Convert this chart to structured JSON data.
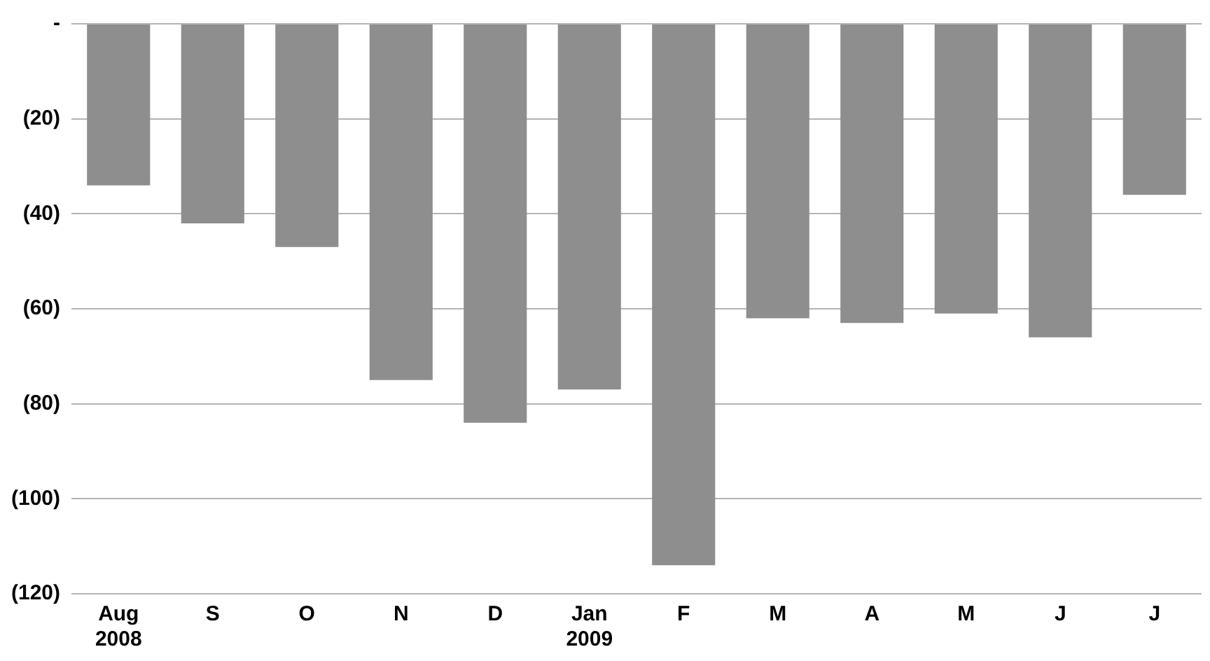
{
  "chart_data": {
    "type": "bar",
    "categories": [
      "Aug\n2008",
      "S",
      "O",
      "N",
      "D",
      "Jan\n2009",
      "F",
      "M",
      "A",
      "M",
      "J",
      "J"
    ],
    "values": [
      -34,
      -42,
      -47,
      -75,
      -84,
      -77,
      -114,
      -62,
      -63,
      -61,
      -66,
      -36
    ],
    "color": "#8e8e8e",
    "ylim": [
      -120,
      0
    ],
    "yticks": [
      {
        "value": 0,
        "label": "-"
      },
      {
        "value": -20,
        "label": "(20)"
      },
      {
        "value": -40,
        "label": "(40)"
      },
      {
        "value": -60,
        "label": "(60)"
      },
      {
        "value": -80,
        "label": "(80)"
      },
      {
        "value": -100,
        "label": "(100)"
      },
      {
        "value": -120,
        "label": "(120)"
      }
    ],
    "grid": "y",
    "legend": false
  }
}
